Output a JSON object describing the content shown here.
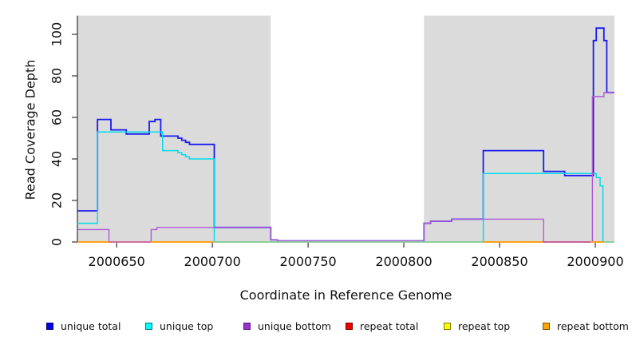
{
  "chart_data": {
    "type": "line",
    "subtype": "step-coverage-plot",
    "title": "",
    "xlabel": "Coordinate in Reference Genome",
    "ylabel": "Read Coverage Depth",
    "xlim": [
      2000629.5,
      2000910
    ],
    "ylim": [
      0,
      109
    ],
    "x_ticks": [
      2000650,
      2000700,
      2000750,
      2000800,
      2000850,
      2000900
    ],
    "y_ticks": [
      0,
      20,
      40,
      60,
      80,
      100
    ],
    "grid": false,
    "legend_position": "bottom",
    "plot_bg": "#ffffff",
    "background_regions": [
      {
        "name": "shaded-region-left",
        "x0": 2000629.5,
        "x1": 2000730.5,
        "color": "#DBDBDB"
      },
      {
        "name": "shaded-region-right",
        "x0": 2000810.5,
        "x1": 2000910.0,
        "color": "#DBDBDB"
      }
    ],
    "series": [
      {
        "name": "repeat total",
        "color": "#DD1111",
        "width": 1.4,
        "points": [
          [
            2000629.5,
            0
          ],
          [
            2000910,
            0
          ]
        ]
      },
      {
        "name": "repeat top",
        "color": "#EDED00",
        "width": 1.4,
        "points": [
          [
            2000629.5,
            0
          ],
          [
            2000910,
            0
          ]
        ]
      },
      {
        "name": "repeat bottom",
        "color": "#FFA010",
        "width": 1.6,
        "points": [
          [
            2000629.5,
            0
          ],
          [
            2000910,
            0
          ]
        ]
      },
      {
        "name": "unique total",
        "color": "#1A1AEF",
        "width": 1.8,
        "points": [
          [
            2000629.5,
            15
          ],
          [
            2000640,
            59
          ],
          [
            2000647,
            54
          ],
          [
            2000655,
            52
          ],
          [
            2000667,
            58
          ],
          [
            2000670,
            59
          ],
          [
            2000673,
            51
          ],
          [
            2000682,
            50
          ],
          [
            2000684,
            49
          ],
          [
            2000686,
            48
          ],
          [
            2000688,
            47
          ],
          [
            2000701,
            7
          ],
          [
            2000730.5,
            1
          ],
          [
            2000734,
            0.5
          ],
          [
            2000810.5,
            9
          ],
          [
            2000814,
            10
          ],
          [
            2000825,
            11
          ],
          [
            2000841.5,
            44
          ],
          [
            2000873,
            34
          ],
          [
            2000884,
            32
          ],
          [
            2000899,
            97
          ],
          [
            2000900.5,
            103
          ],
          [
            2000904.5,
            97
          ],
          [
            2000906,
            72
          ],
          [
            2000910,
            72
          ]
        ]
      },
      {
        "name": "unique top",
        "color": "#00DCEC",
        "width": 1.5,
        "points": [
          [
            2000629.5,
            9
          ],
          [
            2000640,
            53
          ],
          [
            2000674,
            44
          ],
          [
            2000682,
            43
          ],
          [
            2000684,
            42
          ],
          [
            2000686,
            41
          ],
          [
            2000688,
            40
          ],
          [
            2000701,
            0
          ],
          [
            2000841.5,
            33
          ],
          [
            2000900.5,
            31
          ],
          [
            2000902.5,
            27
          ],
          [
            2000904,
            0
          ],
          [
            2000910,
            0
          ]
        ]
      },
      {
        "name": "unique bottom",
        "color": "#AE5BD6",
        "width": 1.4,
        "points": [
          [
            2000629.5,
            6
          ],
          [
            2000646,
            0
          ],
          [
            2000668,
            6
          ],
          [
            2000671,
            7
          ],
          [
            2000730.5,
            1
          ],
          [
            2000734,
            0.5
          ],
          [
            2000810.5,
            9
          ],
          [
            2000814,
            10
          ],
          [
            2000825,
            11
          ],
          [
            2000873,
            0
          ],
          [
            2000898.5,
            70
          ],
          [
            2000904.5,
            72
          ],
          [
            2000910,
            72
          ]
        ]
      }
    ],
    "baseline_segments": [
      {
        "x0": 2000629.5,
        "x1": 2000646,
        "color": "#FFA010"
      },
      {
        "x0": 2000646,
        "x1": 2000668,
        "color": "#D36CA2"
      },
      {
        "x0": 2000668,
        "x1": 2000700.5,
        "color": "#FFA010"
      },
      {
        "x0": 2000700.5,
        "x1": 2000841.5,
        "color": "#8FD19A"
      },
      {
        "x0": 2000841.5,
        "x1": 2000872.5,
        "color": "#FFA010"
      },
      {
        "x0": 2000872.5,
        "x1": 2000897.5,
        "color": "#C95C9C"
      },
      {
        "x0": 2000897.5,
        "x1": 2000904.5,
        "color": "#FFA010"
      },
      {
        "x0": 2000904.5,
        "x1": 2000910,
        "color": "#8FD19A"
      }
    ],
    "legend": [
      {
        "label": "unique total",
        "fill": "#0000EE",
        "border": "#00007A"
      },
      {
        "label": "unique top",
        "fill": "#00FFFF",
        "border": "#007A7A"
      },
      {
        "label": "unique bottom",
        "fill": "#9A30D0",
        "border": "#551A7A"
      },
      {
        "label": "repeat total",
        "fill": "#EE0000",
        "border": "#7A0000"
      },
      {
        "label": "repeat top",
        "fill": "#FFFF00",
        "border": "#7A7A00"
      },
      {
        "label": "repeat bottom",
        "fill": "#FFA500",
        "border": "#7A5200"
      }
    ],
    "axis_color": "#333333"
  }
}
